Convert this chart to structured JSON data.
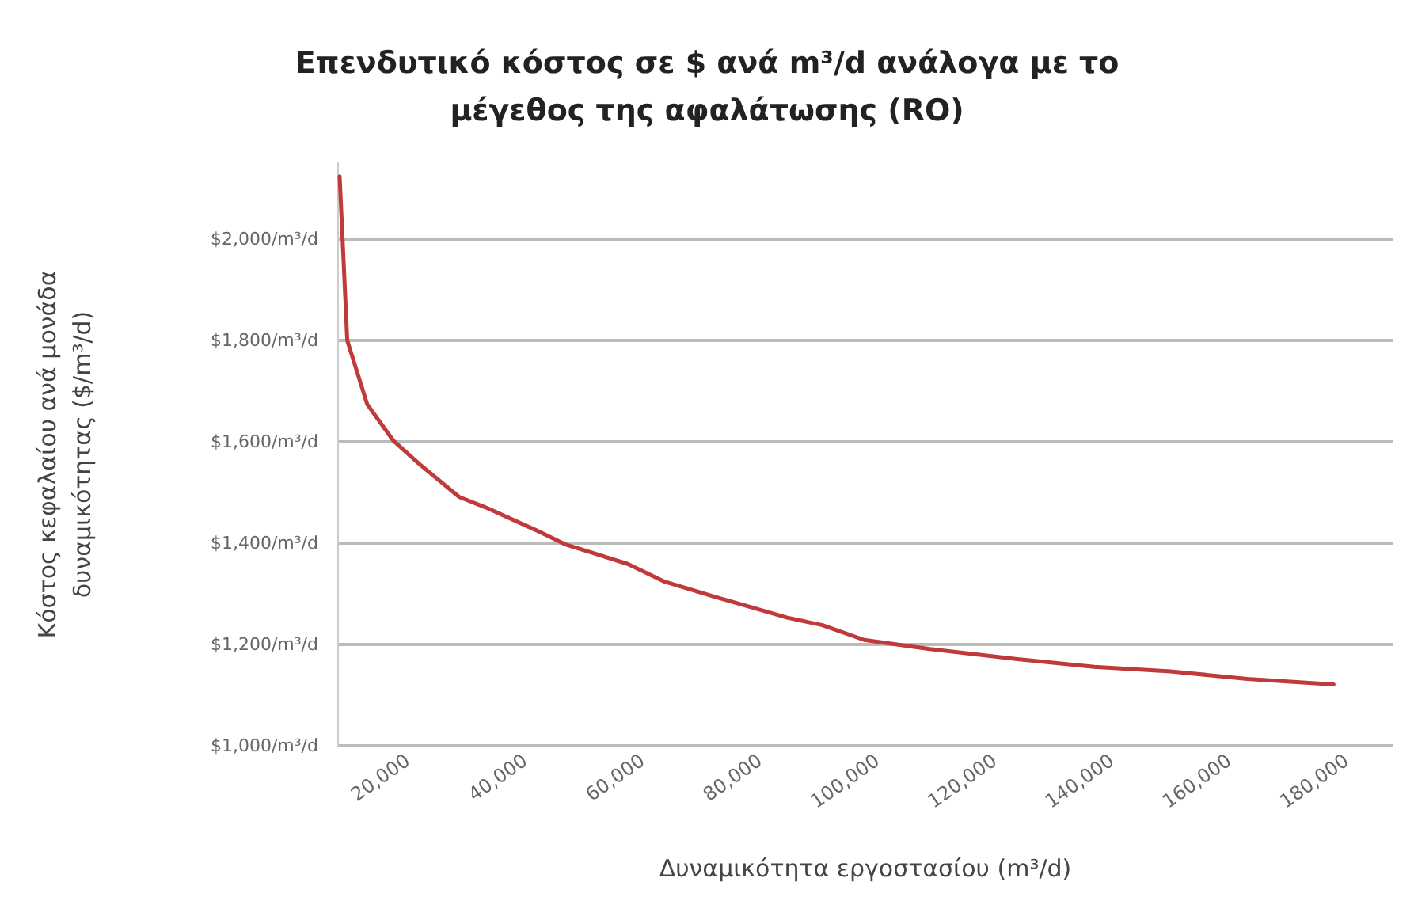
{
  "chart_data": {
    "type": "line",
    "title": "Επενδυτικό κόστος σε $ ανά m³/d ανάλογα με το\nμέγεθος της αφαλάτωσης (RO)",
    "xlabel": "Δυναμικότητα εργοστασίου (m³/d)",
    "ylabel": "Κόστος κεφαλαίου ανά μονάδα\nδυναμικότητας ($/m³/d)",
    "x": [
      8400,
      8900,
      9700,
      13100,
      17500,
      22000,
      28800,
      33200,
      41800,
      47000,
      57500,
      63800,
      72400,
      84700,
      90700,
      97800,
      109000,
      123900,
      137000,
      150000,
      163100,
      177800
    ],
    "series": [
      {
        "color": "#c0393b",
        "values": [
          2124,
          2000,
          1800,
          1674,
          1603,
          1556,
          1491,
          1471,
          1426,
          1397,
          1359,
          1324,
          1294,
          1253,
          1238,
          1209,
          1191,
          1171,
          1156,
          1147,
          1132,
          1121
        ]
      }
    ],
    "xlim": [
      8000,
      188000
    ],
    "xticks": [
      {
        "value": 20000,
        "label": "20,000"
      },
      {
        "value": 40000,
        "label": "40,000"
      },
      {
        "value": 60000,
        "label": "60,000"
      },
      {
        "value": 80000,
        "label": "80,000"
      },
      {
        "value": 100000,
        "label": "100,000"
      },
      {
        "value": 120000,
        "label": "120,000"
      },
      {
        "value": 140000,
        "label": "140,000"
      },
      {
        "value": 160000,
        "label": "160,000"
      },
      {
        "value": 180000,
        "label": "180,000"
      }
    ],
    "ylim": [
      1000,
      2150
    ],
    "yticks": [
      {
        "value": 1000,
        "label": "$1,000/m³/d"
      },
      {
        "value": 1200,
        "label": "$1,200/m³/d"
      },
      {
        "value": 1400,
        "label": "$1,400/m³/d"
      },
      {
        "value": 1600,
        "label": "$1,600/m³/d"
      },
      {
        "value": 1800,
        "label": "$1,800/m³/d"
      },
      {
        "value": 2000,
        "label": "$2,000/m³/d"
      }
    ],
    "grid": "y",
    "marker": "none",
    "line_style": "solid"
  }
}
